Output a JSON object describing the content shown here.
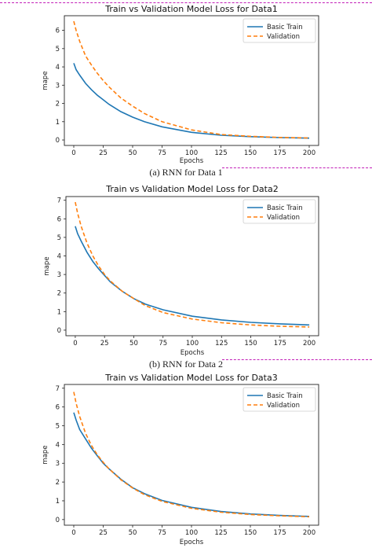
{
  "chart_data": [
    {
      "type": "line",
      "title": "Train vs Validation Model Loss for Data1",
      "xlabel": "Epochs",
      "ylabel": "mape",
      "xlim": [
        -8,
        208
      ],
      "ylim": [
        -0.3,
        6.8
      ],
      "xticks": [
        0,
        25,
        50,
        75,
        100,
        125,
        150,
        175,
        200
      ],
      "yticks": [
        0,
        1,
        2,
        3,
        4,
        5,
        6
      ],
      "legend": "top-right",
      "grid": false,
      "series": [
        {
          "name": "Basic Train",
          "color": "#1f77b4",
          "style": "solid",
          "x": [
            0,
            2,
            5,
            10,
            15,
            20,
            25,
            30,
            40,
            50,
            60,
            75,
            100,
            125,
            150,
            175,
            200
          ],
          "y": [
            4.2,
            3.85,
            3.55,
            3.1,
            2.75,
            2.45,
            2.2,
            1.95,
            1.55,
            1.25,
            1.0,
            0.72,
            0.42,
            0.26,
            0.18,
            0.13,
            0.1
          ]
        },
        {
          "name": "Validation",
          "color": "#ff7f0e",
          "style": "dashed",
          "x": [
            0,
            2,
            5,
            10,
            15,
            20,
            25,
            30,
            40,
            50,
            60,
            75,
            100,
            125,
            150,
            175,
            200
          ],
          "y": [
            6.5,
            6.0,
            5.4,
            4.6,
            4.1,
            3.65,
            3.25,
            2.9,
            2.3,
            1.85,
            1.45,
            1.0,
            0.55,
            0.3,
            0.2,
            0.14,
            0.11
          ]
        }
      ]
    },
    {
      "type": "line",
      "title": "Train vs Validation Model Loss for Data2",
      "xlabel": "Epochs",
      "ylabel": "mape",
      "xlim": [
        -8,
        208
      ],
      "ylim": [
        -0.3,
        7.2
      ],
      "xticks": [
        0,
        25,
        50,
        75,
        100,
        125,
        150,
        175,
        200
      ],
      "yticks": [
        0,
        1,
        2,
        3,
        4,
        5,
        6,
        7
      ],
      "legend": "top-right",
      "grid": false,
      "series": [
        {
          "name": "Basic Train",
          "color": "#1f77b4",
          "style": "solid",
          "x": [
            0,
            2,
            5,
            10,
            15,
            20,
            25,
            30,
            40,
            50,
            60,
            75,
            100,
            125,
            150,
            175,
            200
          ],
          "y": [
            5.6,
            5.2,
            4.8,
            4.2,
            3.7,
            3.3,
            2.95,
            2.6,
            2.1,
            1.7,
            1.4,
            1.1,
            0.75,
            0.55,
            0.42,
            0.34,
            0.28
          ]
        },
        {
          "name": "Validation",
          "color": "#ff7f0e",
          "style": "dashed",
          "x": [
            0,
            2,
            5,
            10,
            15,
            20,
            25,
            30,
            40,
            50,
            60,
            75,
            100,
            125,
            150,
            175,
            200
          ],
          "y": [
            6.9,
            6.3,
            5.6,
            4.7,
            4.0,
            3.45,
            3.0,
            2.65,
            2.1,
            1.7,
            1.32,
            0.95,
            0.6,
            0.4,
            0.28,
            0.21,
            0.17
          ]
        }
      ]
    },
    {
      "type": "line",
      "title": "Train vs Validation Model Loss for Data3",
      "xlabel": "Epochs",
      "ylabel": "mape",
      "xlim": [
        -8,
        208
      ],
      "ylim": [
        -0.3,
        7.2
      ],
      "xticks": [
        0,
        25,
        50,
        75,
        100,
        125,
        150,
        175,
        200
      ],
      "yticks": [
        0,
        1,
        2,
        3,
        4,
        5,
        6,
        7
      ],
      "legend": "top-right",
      "grid": false,
      "series": [
        {
          "name": "Basic Train",
          "color": "#1f77b4",
          "style": "solid",
          "x": [
            0,
            2,
            5,
            10,
            15,
            20,
            25,
            30,
            40,
            50,
            60,
            75,
            100,
            125,
            150,
            175,
            200
          ],
          "y": [
            5.7,
            5.3,
            4.8,
            4.3,
            3.8,
            3.4,
            3.0,
            2.7,
            2.15,
            1.7,
            1.38,
            1.02,
            0.65,
            0.43,
            0.3,
            0.22,
            0.17
          ]
        },
        {
          "name": "Validation",
          "color": "#ff7f0e",
          "style": "dashed",
          "x": [
            0,
            2,
            5,
            10,
            15,
            20,
            25,
            30,
            40,
            50,
            60,
            75,
            100,
            125,
            150,
            175,
            200
          ],
          "y": [
            6.8,
            6.2,
            5.5,
            4.6,
            3.95,
            3.45,
            3.05,
            2.7,
            2.12,
            1.68,
            1.33,
            0.97,
            0.6,
            0.39,
            0.27,
            0.2,
            0.15
          ]
        }
      ]
    }
  ],
  "captions": [
    "(a) RNN for Data 1",
    "(b) RNN for Data 2"
  ]
}
